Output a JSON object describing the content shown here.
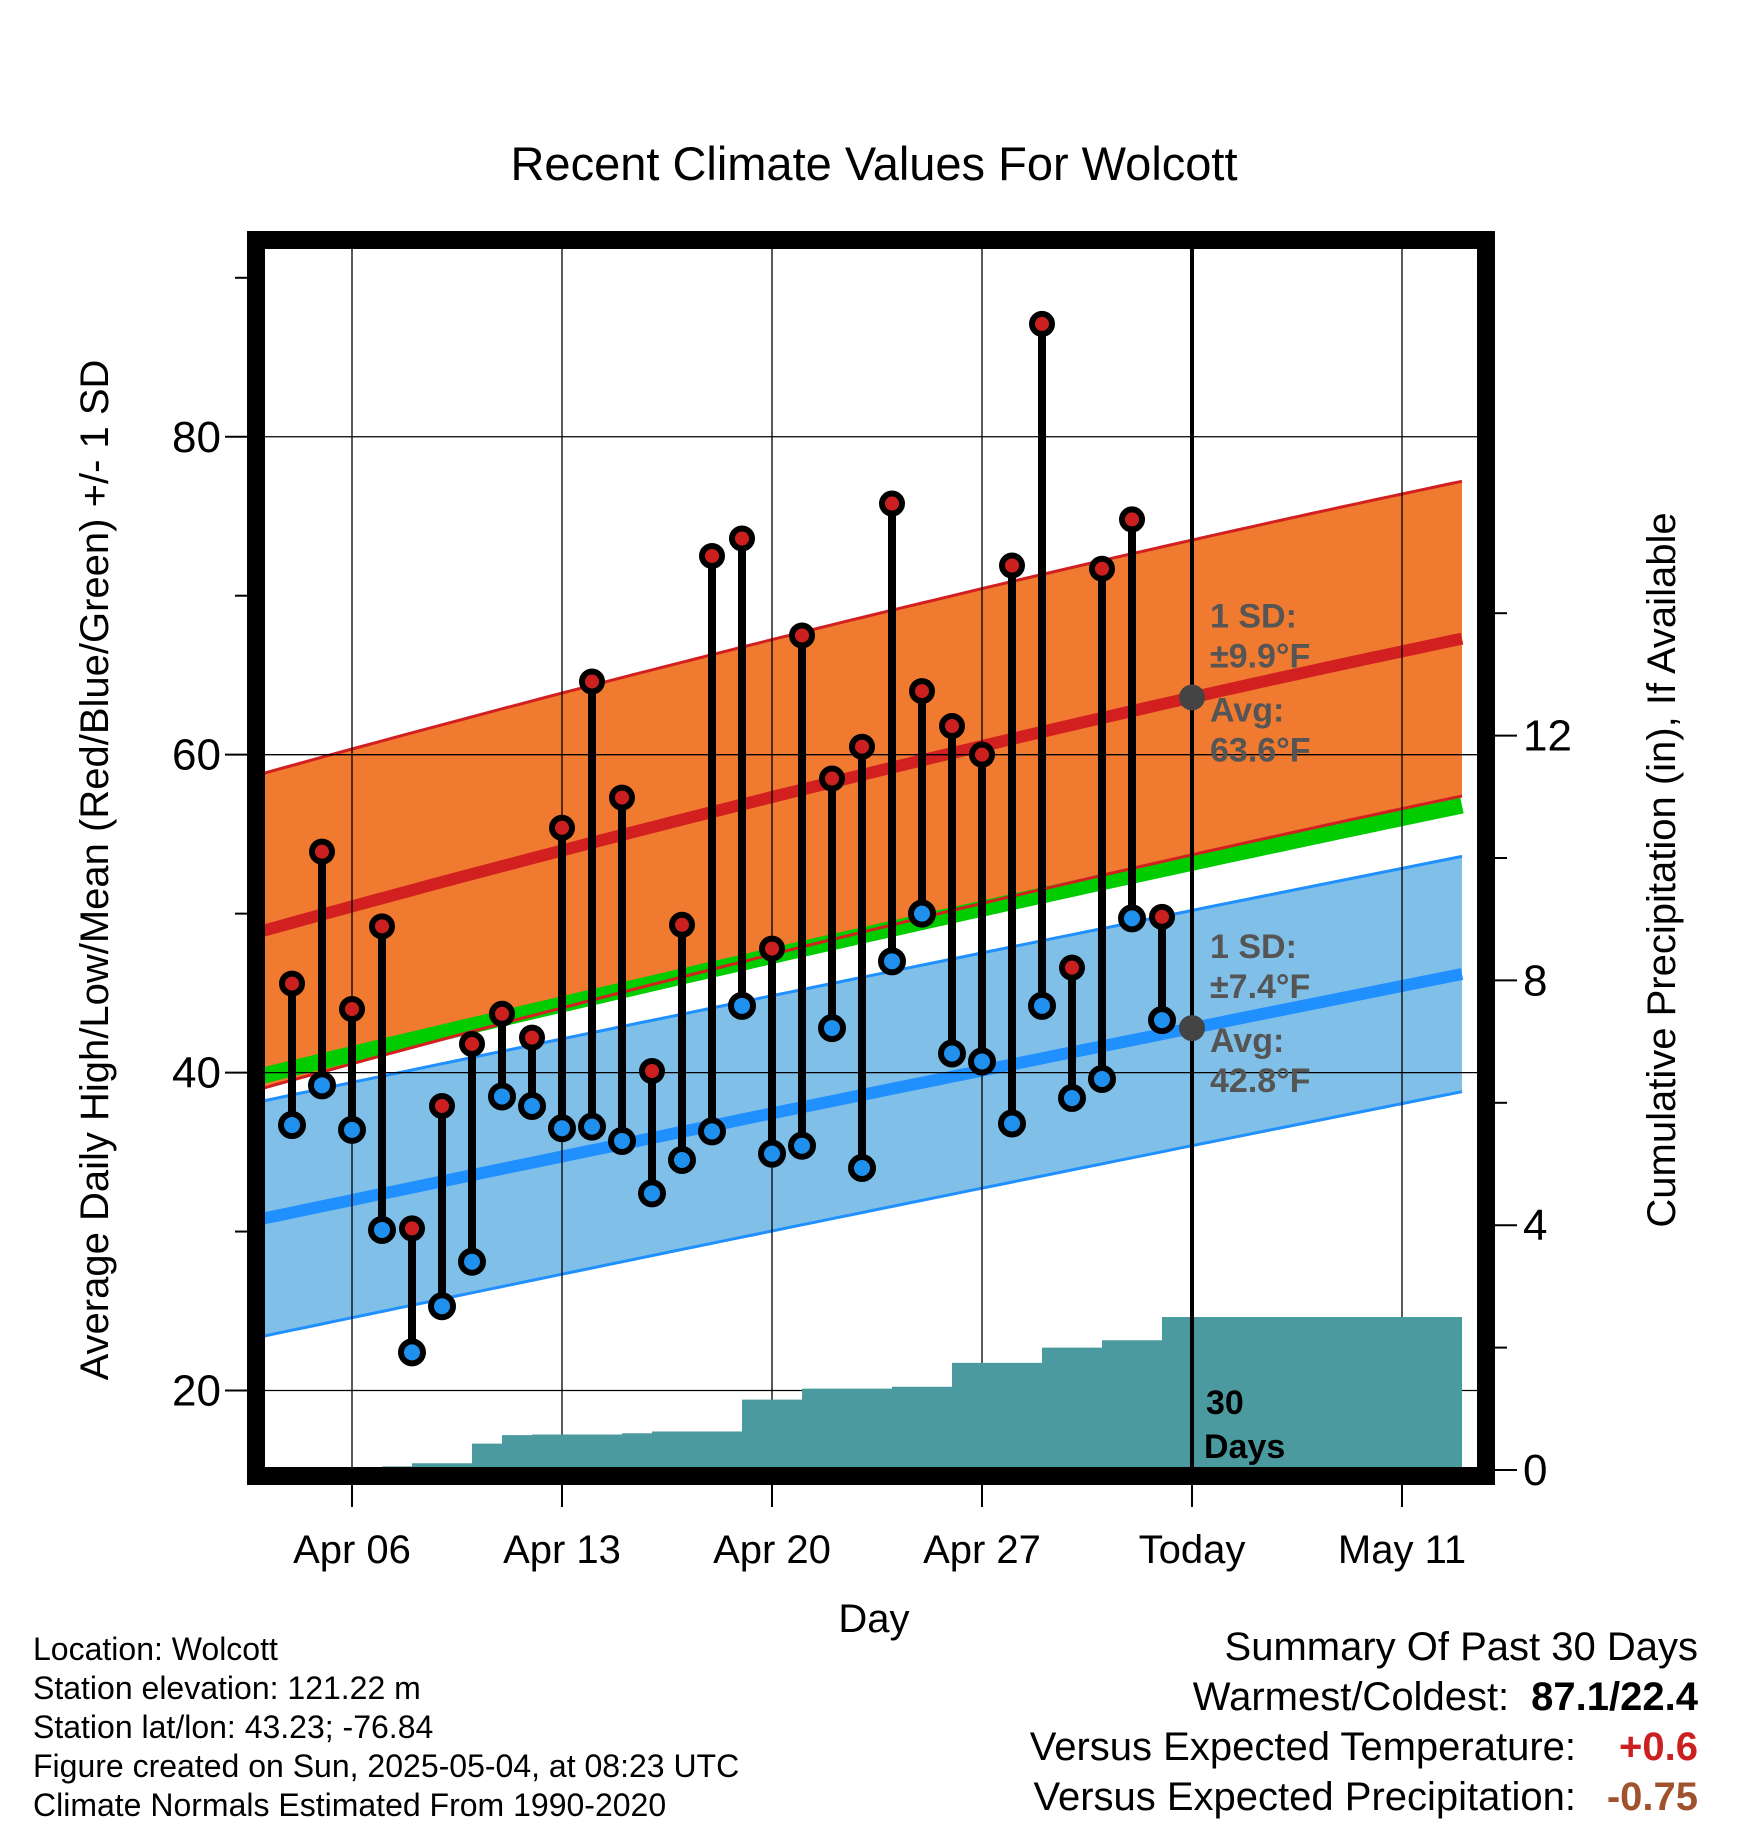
{
  "chart_data": {
    "type": "line",
    "title": "Recent Climate Values For Wolcott",
    "xlabel": "Day",
    "ylabel": "Average Daily High/Low/Mean (Red/Blue/Green) +/- 1 SD",
    "y2label": "Cumulative Precipitation (in), If Available",
    "x_range": [
      "2025-04-03",
      "2025-05-13"
    ],
    "ylim": [
      15,
      92
    ],
    "y2lim": [
      0,
      20
    ],
    "yticks": [
      20,
      40,
      60,
      80
    ],
    "y2ticks": [
      0,
      4,
      8,
      12
    ],
    "x_tick_dates": [
      "2025-04-06",
      "2025-04-13",
      "2025-04-20",
      "2025-04-27",
      "2025-05-04",
      "2025-05-11"
    ],
    "x_tick_labels": [
      "Apr 06",
      "Apr 13",
      "Apr 20",
      "Apr 27",
      "Today",
      "May 11"
    ],
    "grid": true,
    "today": "2025-05-04",
    "dates": [
      "2025-04-04",
      "2025-04-05",
      "2025-04-06",
      "2025-04-07",
      "2025-04-08",
      "2025-04-09",
      "2025-04-10",
      "2025-04-11",
      "2025-04-12",
      "2025-04-13",
      "2025-04-14",
      "2025-04-15",
      "2025-04-16",
      "2025-04-17",
      "2025-04-18",
      "2025-04-19",
      "2025-04-20",
      "2025-04-21",
      "2025-04-22",
      "2025-04-23",
      "2025-04-24",
      "2025-04-25",
      "2025-04-26",
      "2025-04-27",
      "2025-04-28",
      "2025-04-29",
      "2025-04-30",
      "2025-05-01",
      "2025-05-02",
      "2025-05-03"
    ],
    "highs": [
      45.6,
      53.9,
      44.0,
      49.2,
      30.2,
      37.9,
      41.8,
      43.7,
      42.2,
      55.4,
      64.6,
      57.3,
      40.1,
      49.3,
      72.5,
      73.6,
      47.8,
      67.5,
      58.5,
      60.5,
      75.8,
      64.0,
      61.8,
      60.0,
      71.9,
      87.1,
      46.6,
      71.7,
      74.8,
      49.8
    ],
    "lows": [
      36.7,
      39.2,
      36.4,
      30.1,
      22.4,
      25.3,
      28.1,
      38.5,
      37.9,
      36.5,
      36.6,
      35.7,
      32.4,
      34.5,
      36.3,
      44.2,
      34.9,
      35.4,
      42.8,
      34.0,
      47.0,
      50.0,
      41.2,
      40.7,
      36.8,
      44.2,
      38.4,
      39.6,
      49.7,
      43.3
    ],
    "normals": {
      "dates": [
        "2025-04-03",
        "2025-05-04",
        "2025-05-13"
      ],
      "mean_high": [
        48.9,
        63.6,
        67.3
      ],
      "mean_low": [
        30.8,
        42.8,
        46.2
      ],
      "mean": [
        39.8,
        53.2,
        56.8
      ],
      "high_sd": 9.9,
      "low_sd": 7.4
    },
    "precip_cumulative": {
      "dates": [
        "2025-04-04",
        "2025-04-05",
        "2025-04-06",
        "2025-04-07",
        "2025-04-08",
        "2025-04-09",
        "2025-04-10",
        "2025-04-11",
        "2025-04-12",
        "2025-04-13",
        "2025-04-14",
        "2025-04-15",
        "2025-04-16",
        "2025-04-17",
        "2025-04-18",
        "2025-04-19",
        "2025-04-20",
        "2025-04-21",
        "2025-04-22",
        "2025-04-23",
        "2025-04-24",
        "2025-04-25",
        "2025-04-26",
        "2025-04-27",
        "2025-04-28",
        "2025-04-29",
        "2025-04-30",
        "2025-05-01",
        "2025-05-02",
        "2025-05-03",
        "2025-05-04",
        "2025-05-13"
      ],
      "values": [
        0.0,
        0.03,
        0.03,
        0.06,
        0.11,
        0.11,
        0.43,
        0.57,
        0.58,
        0.58,
        0.58,
        0.6,
        0.63,
        0.63,
        0.63,
        1.15,
        1.15,
        1.33,
        1.33,
        1.33,
        1.36,
        1.36,
        1.75,
        1.75,
        1.75,
        2.0,
        2.0,
        2.12,
        2.12,
        2.5,
        2.5,
        2.5
      ]
    },
    "annotations": {
      "high_sd_label": "1 SD:",
      "high_sd_value": "±9.9°F",
      "high_avg_label": "Avg:",
      "high_avg_value": "63.6°F",
      "low_sd_label": "1 SD:",
      "low_sd_value": "±7.4°F",
      "low_avg_label": "Avg:",
      "low_avg_value": "42.8°F",
      "precip_days_line1": "30",
      "precip_days_line2": "Days"
    },
    "colors": {
      "high_band": "#f07a30",
      "high_line": "#d22020",
      "low_band": "#80c0e8",
      "low_line": "#2090ff",
      "mean_line": "#00cc00",
      "precip": "#4a9aa0",
      "high_marker": "#cc2020",
      "low_marker": "#2090ee",
      "avg_dot": "#444444"
    }
  },
  "info": {
    "location": "Location: Wolcott",
    "elevation": "Station elevation: 121.22 m",
    "latlon": "Station lat/lon: 43.23; -76.84",
    "created": "Figure created on Sun, 2025-05-04, at 08:23 UTC",
    "normals": "Climate Normals Estimated From 1990-2020"
  },
  "summary": {
    "title": "Summary Of Past 30 Days",
    "warm_cold_label": "Warmest/Coldest:",
    "warm_cold_value": "87.1/22.4",
    "temp_label": "Versus Expected Temperature:",
    "temp_value": "+0.6",
    "temp_color": "#cc2020",
    "precip_label": "Versus Expected Precipitation:",
    "precip_value": "-0.75",
    "precip_color": "#a0522d"
  }
}
